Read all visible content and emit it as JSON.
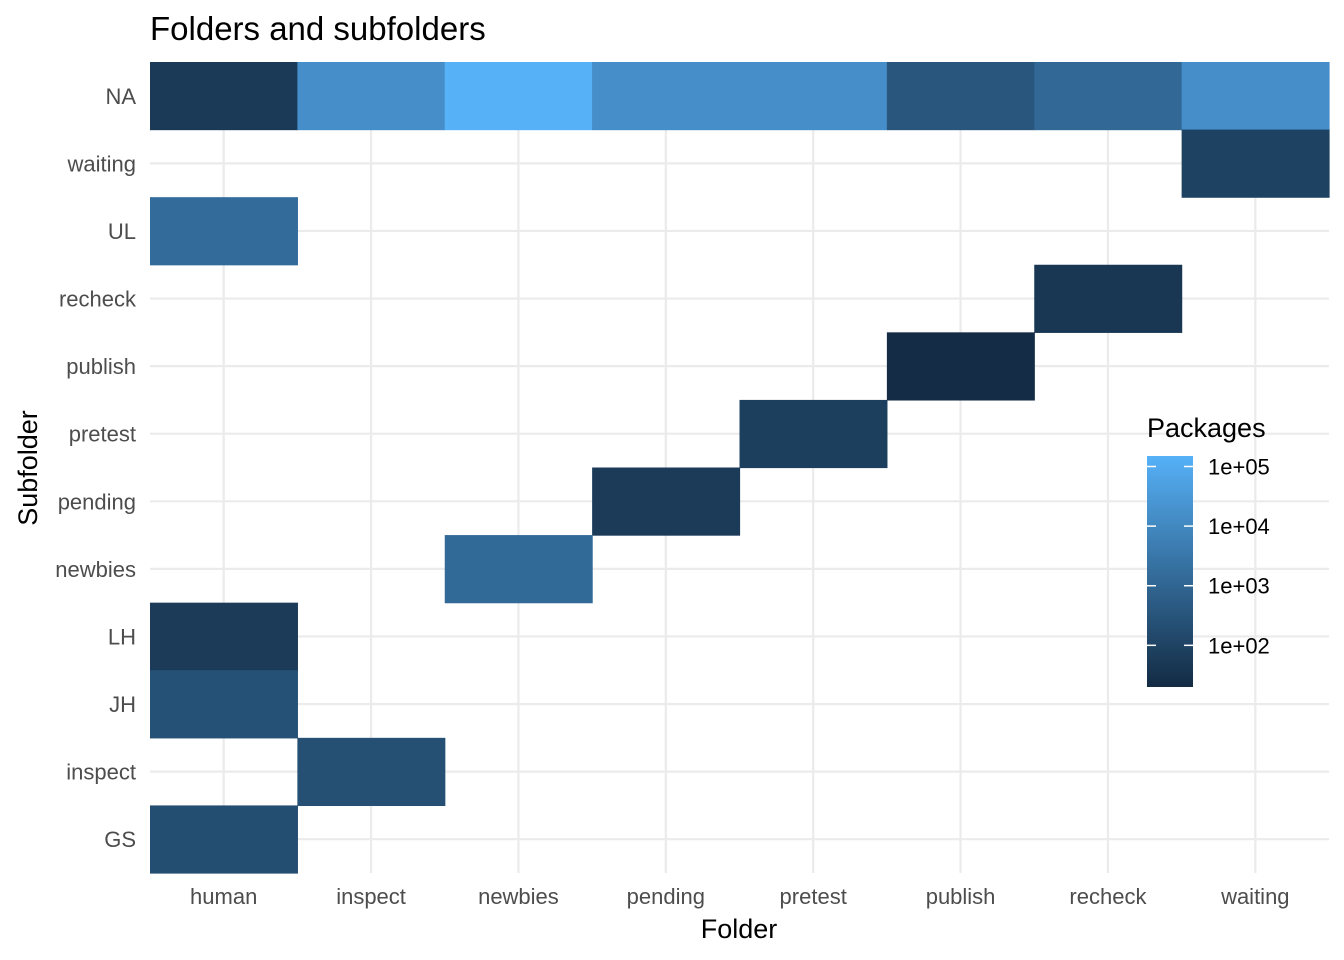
{
  "chart_data": {
    "type": "heatmap",
    "title": "Folders and subfolders",
    "xlabel": "Folder",
    "ylabel": "Subfolder",
    "x_categories": [
      "human",
      "inspect",
      "newbies",
      "pending",
      "pretest",
      "publish",
      "recheck",
      "waiting"
    ],
    "y_categories": [
      "GS",
      "inspect",
      "JH",
      "LH",
      "newbies",
      "pending",
      "pretest",
      "publish",
      "recheck",
      "UL",
      "waiting",
      "NA"
    ],
    "color_scale": "log10",
    "color_low": "#132b43",
    "color_high": "#56b1f7",
    "color_domain": [
      20,
      150000
    ],
    "legend": {
      "title": "Packages",
      "placement": "right",
      "breaks": [
        100,
        1000,
        10000,
        100000
      ],
      "break_labels": [
        "1e+02",
        "1e+03",
        "1e+04",
        "1e+05"
      ]
    },
    "grid": true,
    "cells": [
      {
        "x": "human",
        "y": "NA",
        "value": 55
      },
      {
        "x": "inspect",
        "y": "NA",
        "value": 15000
      },
      {
        "x": "newbies",
        "y": "NA",
        "value": 150000
      },
      {
        "x": "pending",
        "y": "NA",
        "value": 15000
      },
      {
        "x": "pretest",
        "y": "NA",
        "value": 15000
      },
      {
        "x": "publish",
        "y": "NA",
        "value": 350
      },
      {
        "x": "recheck",
        "y": "NA",
        "value": 1200
      },
      {
        "x": "waiting",
        "y": "NA",
        "value": 15000
      },
      {
        "x": "waiting",
        "y": "waiting",
        "value": 90
      },
      {
        "x": "human",
        "y": "UL",
        "value": 1500
      },
      {
        "x": "recheck",
        "y": "recheck",
        "value": 45
      },
      {
        "x": "publish",
        "y": "publish",
        "value": 22
      },
      {
        "x": "pretest",
        "y": "pretest",
        "value": 75
      },
      {
        "x": "pending",
        "y": "pending",
        "value": 60
      },
      {
        "x": "newbies",
        "y": "newbies",
        "value": 1300
      },
      {
        "x": "human",
        "y": "LH",
        "value": 60
      },
      {
        "x": "human",
        "y": "JH",
        "value": 250
      },
      {
        "x": "inspect",
        "y": "inspect",
        "value": 230
      },
      {
        "x": "human",
        "y": "GS",
        "value": 200
      }
    ]
  }
}
